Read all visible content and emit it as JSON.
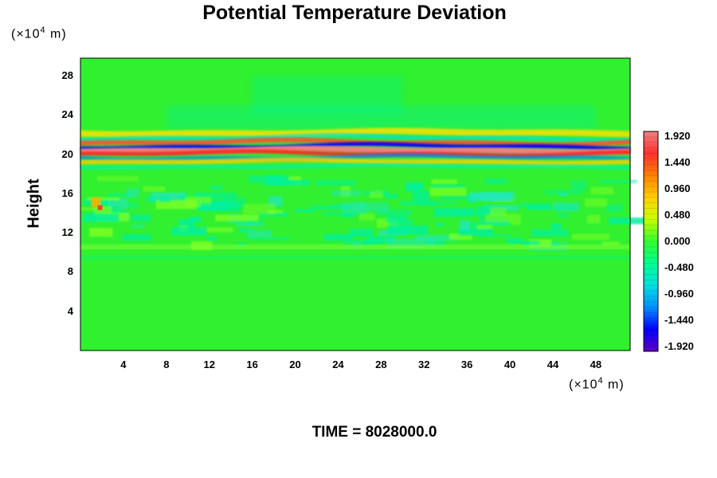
{
  "chart_data": {
    "type": "heatmap",
    "title": "Potential Temperature Deviation",
    "ylabel": "Height",
    "y_unit": {
      "prefix": "(×10",
      "exp": "4",
      "suffix": " m)"
    },
    "x_unit": {
      "prefix": "(×10",
      "exp": "4",
      "suffix": " m)"
    },
    "xlim": [
      0,
      51.2
    ],
    "ylim": [
      0,
      29.8
    ],
    "x_ticks": [
      "4",
      "8",
      "12",
      "16",
      "20",
      "24",
      "28",
      "32",
      "36",
      "40",
      "44",
      "48"
    ],
    "y_ticks": [
      "4",
      "8",
      "12",
      "16",
      "20",
      "24",
      "28"
    ],
    "colorbar": {
      "labels": [
        "1.920",
        "1.440",
        "0.960",
        "0.480",
        "0.000",
        "-0.480",
        "-0.960",
        "-1.440",
        "-1.920"
      ],
      "range": [
        -2.0,
        2.0
      ],
      "colors_high_to_low": [
        "#f08080",
        "#ff3030",
        "#ff8000",
        "#ffd000",
        "#c8ff00",
        "#30ff30",
        "#00ff90",
        "#00e0e0",
        "#0090ff",
        "#0000ff",
        "#6000c0"
      ]
    },
    "features": [
      {
        "description_level": "strong deviation band",
        "height_center": 20.4,
        "range": [
          -1.92,
          1.92
        ]
      },
      {
        "description_level": "moderate perturbations",
        "height_band": [
          11,
          18
        ],
        "range": [
          -0.5,
          0.9
        ]
      },
      {
        "description_level": "near zero",
        "height_band": [
          0,
          10
        ],
        "range": [
          -0.2,
          0.2
        ]
      }
    ],
    "footer": "TIME = 8028000.0"
  }
}
